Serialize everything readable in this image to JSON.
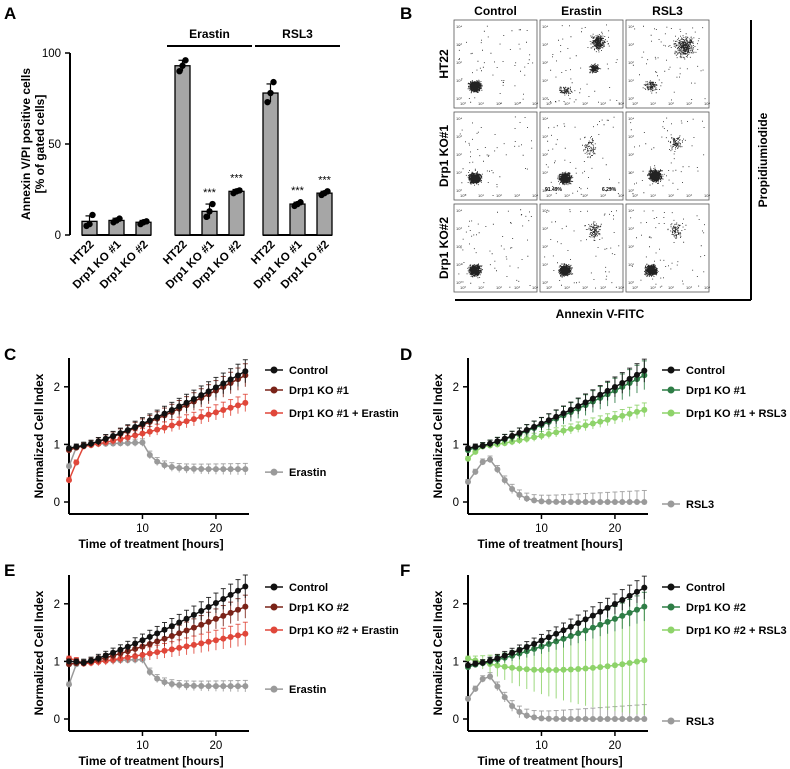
{
  "panels": {
    "A": "A",
    "B": "B",
    "C": "C",
    "D": "D",
    "E": "E",
    "F": "F"
  },
  "flow": {
    "columns": [
      "Control",
      "Erastin",
      "RSL3"
    ],
    "rows": [
      "HT22",
      "Drp1 KO#1",
      "Drp1 KO#2"
    ],
    "x_label": "Annexin V-FITC",
    "y_label": "Propidiumiodide",
    "quadrant_left": "91.49%",
    "quadrant_right": "6.29%",
    "tick_labels": [
      "10⁰",
      "10¹",
      "10²",
      "10³",
      "10⁴"
    ]
  },
  "colors": {
    "control": "#111111",
    "ko_dark": "#7a2318",
    "ko_erastin": "#e0473a",
    "grey": "#9a9a9a",
    "ko_green_dark": "#2e7d46",
    "ko_green_light": "#8ed36a",
    "bar": "#a6a6a6"
  },
  "chart_data": [
    {
      "panel": "A",
      "type": "bar",
      "ylabel": "Annexin V/PI positive cells\n[% of gated cells]",
      "ylim": [
        0,
        100
      ],
      "yticks": [
        "0",
        "50",
        "100"
      ],
      "groups": [
        {
          "label": "",
          "categories": [
            "HT22",
            "Drp1 KO #1",
            "Drp1 KO #2"
          ],
          "values": [
            7.5,
            8,
            7
          ],
          "errors": [
            3,
            1.2,
            1
          ],
          "points": [
            [
              5,
              6,
              11
            ],
            [
              7,
              8,
              9
            ],
            [
              6,
              7,
              7.5
            ]
          ],
          "sig": [
            "",
            "",
            ""
          ]
        },
        {
          "label": "Erastin",
          "categories": [
            "HT22",
            "Drp1 KO #1",
            "Drp1 KO #2"
          ],
          "values": [
            93,
            13,
            24
          ],
          "errors": [
            3,
            4,
            1
          ],
          "points": [
            [
              90,
              93,
              96
            ],
            [
              10,
              13,
              17
            ],
            [
              23,
              24,
              24.5
            ]
          ],
          "sig": [
            "",
            "***",
            "***"
          ]
        },
        {
          "label": "RSL3",
          "categories": [
            "HT22",
            "Drp1 KO #1",
            "Drp1 KO #2"
          ],
          "values": [
            78,
            17,
            23
          ],
          "errors": [
            5,
            1,
            1
          ],
          "points": [
            [
              73,
              78,
              84
            ],
            [
              16,
              17,
              18
            ],
            [
              22,
              23,
              24
            ]
          ],
          "sig": [
            "",
            "***",
            "***"
          ]
        }
      ]
    },
    {
      "panel": "C",
      "type": "line",
      "xlabel": "Time of treatment [hours]",
      "ylabel": "Normalized Cell Index",
      "xlim": [
        0,
        24.5
      ],
      "ylim": [
        0,
        2.5
      ],
      "xticks": [
        "10",
        "20"
      ],
      "yticks": [
        "0",
        "1",
        "2"
      ],
      "series": [
        {
          "name": "Control",
          "color": "#111111",
          "start": 0.93,
          "shape": "linear",
          "end": 2.27,
          "err_end": 0.2
        },
        {
          "name": "Drp1 KO #1",
          "color": "#7a2318",
          "start": 0.9,
          "shape": "linear",
          "end": 2.2,
          "err_end": 0.2
        },
        {
          "name": "Drp1 KO #1 + Erastin",
          "color": "#e0473a",
          "start": 0.38,
          "shape": "linear",
          "end": 1.72,
          "err_end": 0.15
        },
        {
          "name": "Erastin",
          "color": "#9a9a9a",
          "start": 0.62,
          "shape": "drop",
          "plateau": 0.57,
          "drop_at": 10,
          "err_end": 0.1
        }
      ]
    },
    {
      "panel": "D",
      "type": "line",
      "xlabel": "Time of treatment [hours]",
      "ylabel": "Normalized Cell Index",
      "xlim": [
        0,
        24.5
      ],
      "ylim": [
        0,
        2.5
      ],
      "xticks": [
        "10",
        "20"
      ],
      "yticks": [
        "0",
        "1",
        "2"
      ],
      "series": [
        {
          "name": "Control",
          "color": "#111111",
          "start": 0.93,
          "shape": "linear",
          "end": 2.28,
          "err_end": 0.2
        },
        {
          "name": "Drp1 KO #1",
          "color": "#2e7d46",
          "start": 0.9,
          "shape": "linear",
          "end": 2.2,
          "err_end": 0.25
        },
        {
          "name": "Drp1 KO #1 + RSL3",
          "color": "#8ed36a",
          "start": 0.75,
          "shape": "linear",
          "end": 1.6,
          "err_end": 0.12
        },
        {
          "name": "RSL3",
          "color": "#9a9a9a",
          "start": 0.35,
          "shape": "bump",
          "peak": 0.78,
          "peak_at": 2.5,
          "err_end": 0.2
        }
      ]
    },
    {
      "panel": "E",
      "type": "line",
      "xlabel": "Time of treatment [hours]",
      "ylabel": "Normalized Cell Index",
      "xlim": [
        0,
        24.5
      ],
      "ylim": [
        0,
        2.5
      ],
      "xticks": [
        "10",
        "20"
      ],
      "yticks": [
        "0",
        "1",
        "2"
      ],
      "series": [
        {
          "name": "Control",
          "color": "#111111",
          "start": 1.0,
          "shape": "linear",
          "end": 2.3,
          "err_end": 0.2
        },
        {
          "name": "Drp1 KO #2",
          "color": "#7a2318",
          "start": 0.95,
          "shape": "linear",
          "end": 1.95,
          "err_end": 0.2
        },
        {
          "name": "Drp1 KO #2 + Erastin",
          "color": "#e0473a",
          "start": 1.05,
          "shape": "linear",
          "end": 1.48,
          "err_end": 0.2
        },
        {
          "name": "Erastin",
          "color": "#9a9a9a",
          "start": 0.6,
          "shape": "drop",
          "plateau": 0.57,
          "drop_at": 10,
          "err_end": 0.1
        }
      ]
    },
    {
      "panel": "F",
      "type": "line",
      "xlabel": "Time of treatment [hours]",
      "ylabel": "Normalized Cell Index",
      "xlim": [
        0,
        24.5
      ],
      "ylim": [
        0,
        2.5
      ],
      "xticks": [
        "10",
        "20"
      ],
      "yticks": [
        "0",
        "1",
        "2"
      ],
      "series": [
        {
          "name": "Control",
          "color": "#111111",
          "start": 0.93,
          "shape": "linear",
          "end": 2.28,
          "err_end": 0.2
        },
        {
          "name": "Drp1 KO #2",
          "color": "#2e7d46",
          "start": 0.9,
          "shape": "linear",
          "end": 1.95,
          "err_end": 0.25
        },
        {
          "name": "Drp1 KO #2 + RSL3",
          "color": "#8ed36a",
          "start": 1.05,
          "shape": "dip",
          "end": 1.02,
          "min": 0.85,
          "err_end": 0.95
        },
        {
          "name": "RSL3",
          "color": "#9a9a9a",
          "start": 0.35,
          "shape": "bump",
          "peak": 0.78,
          "peak_at": 2.5,
          "err_end": 0.25
        }
      ]
    }
  ]
}
